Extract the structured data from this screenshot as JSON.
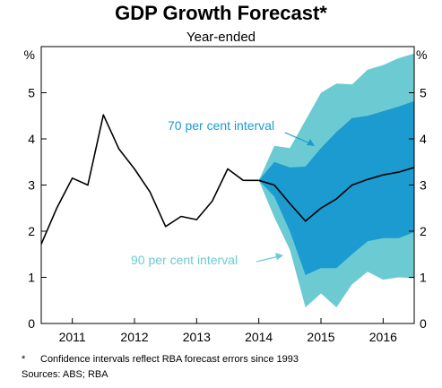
{
  "title": "GDP Growth Forecast*",
  "subtitle": "Year-ended",
  "footnote": {
    "marker": "*",
    "text": "Confidence intervals reflect RBA forecast errors since 1993"
  },
  "sources": "Sources:  ABS; RBA",
  "colors": {
    "history_line": "#000000",
    "interval_90": "#6ccbd2",
    "interval_70": "#1b9bcf",
    "label_70": "#1b9bcf",
    "label_90": "#6ccbd2",
    "forecast_line": "#000000"
  },
  "chart_data": {
    "type": "area",
    "ylim": [
      0,
      6
    ],
    "y_ticks": [
      0,
      1,
      2,
      3,
      4,
      5
    ],
    "y_unit_left": "%",
    "y_unit_right": "%",
    "x_range": [
      2010.5,
      2016.5
    ],
    "x_tick_labels": [
      "2011",
      "2012",
      "2013",
      "2014",
      "2015",
      "2016"
    ],
    "history": {
      "x": [
        2010.5,
        2010.75,
        2011.0,
        2011.25,
        2011.5,
        2011.75,
        2012.0,
        2012.25,
        2012.5,
        2012.75,
        2013.0,
        2013.25,
        2013.5,
        2013.75,
        2014.0
      ],
      "y": [
        1.72,
        2.5,
        3.15,
        3.0,
        4.52,
        3.78,
        3.35,
        2.85,
        2.1,
        2.32,
        2.25,
        2.65,
        3.35,
        3.1,
        3.1
      ]
    },
    "forecast": {
      "x": [
        2014.0,
        2014.25,
        2014.5,
        2014.75,
        2015.0,
        2015.25,
        2015.5,
        2015.75,
        2016.0,
        2016.25,
        2016.5
      ],
      "central": [
        3.1,
        3.0,
        2.6,
        2.22,
        2.5,
        2.7,
        3.0,
        3.12,
        3.22,
        3.28,
        3.38
      ],
      "upper_90": [
        3.1,
        3.85,
        3.8,
        4.4,
        5.0,
        5.2,
        5.18,
        5.5,
        5.6,
        5.75,
        5.85
      ],
      "lower_90": [
        3.1,
        2.3,
        1.6,
        0.35,
        0.65,
        0.35,
        0.85,
        1.12,
        0.95,
        1.0,
        0.98
      ],
      "upper_70": [
        3.1,
        3.5,
        3.38,
        3.4,
        3.8,
        4.15,
        4.45,
        4.5,
        4.6,
        4.7,
        4.82
      ],
      "lower_70": [
        3.1,
        2.75,
        2.0,
        1.05,
        1.2,
        1.2,
        1.5,
        1.78,
        1.85,
        1.85,
        1.98
      ]
    },
    "annotations": [
      {
        "text": "70 per cent interval",
        "color_key": "label_70"
      },
      {
        "text": "90 per cent interval",
        "color_key": "label_90"
      }
    ]
  }
}
